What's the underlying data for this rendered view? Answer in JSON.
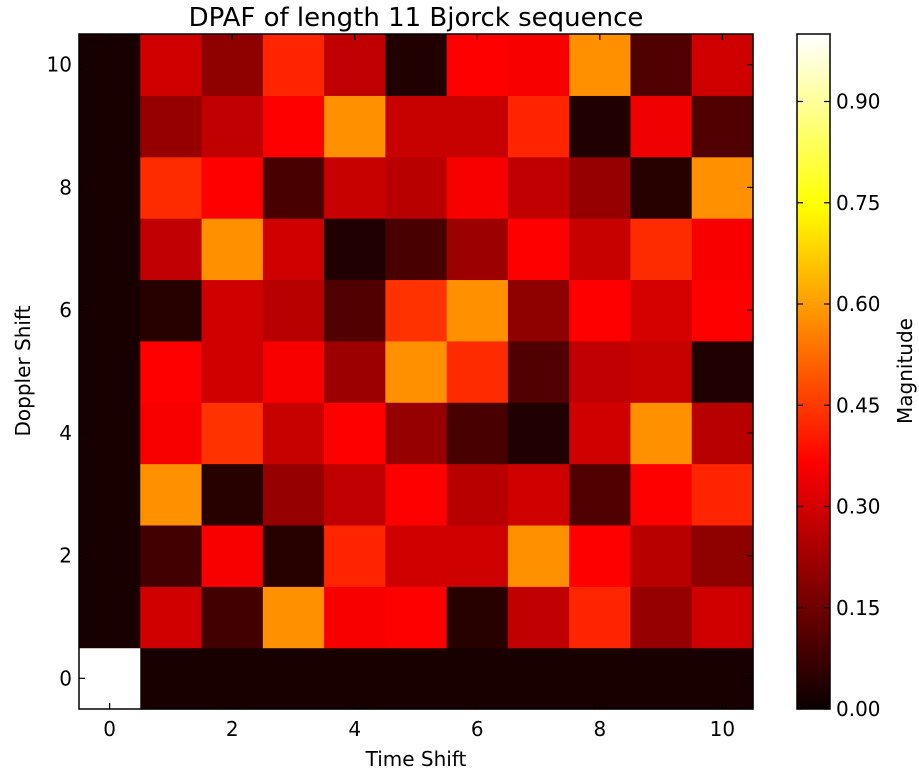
{
  "chart_data": {
    "type": "heatmap",
    "title": "DPAF of length 11 Bjorck sequence",
    "xlabel": "Time Shift",
    "ylabel": "Doppler Shift",
    "x_ticks": [
      0,
      2,
      4,
      6,
      8,
      10
    ],
    "y_ticks": [
      0,
      2,
      4,
      6,
      8,
      10
    ],
    "xlim": [
      -0.5,
      10.5
    ],
    "ylim": [
      -0.5,
      10.5
    ],
    "colormap": "hot",
    "colorbar": {
      "label": "Magnitude",
      "range": [
        0.0,
        1.0
      ],
      "ticks": [
        "0.00",
        "0.15",
        "0.30",
        "0.45",
        "0.60",
        "0.75",
        "0.90"
      ]
    },
    "rows_doppler_0_to_10": [
      [
        1.0,
        0.02,
        0.02,
        0.02,
        0.02,
        0.02,
        0.02,
        0.02,
        0.02,
        0.02,
        0.02
      ],
      [
        0.02,
        0.28,
        0.08,
        0.58,
        0.34,
        0.36,
        0.04,
        0.26,
        0.42,
        0.2,
        0.28
      ],
      [
        0.02,
        0.08,
        0.34,
        0.04,
        0.42,
        0.28,
        0.28,
        0.58,
        0.36,
        0.25,
        0.19
      ],
      [
        0.02,
        0.58,
        0.04,
        0.2,
        0.26,
        0.35,
        0.25,
        0.28,
        0.1,
        0.36,
        0.42
      ],
      [
        0.02,
        0.34,
        0.44,
        0.27,
        0.36,
        0.2,
        0.09,
        0.03,
        0.28,
        0.58,
        0.25
      ],
      [
        0.02,
        0.36,
        0.28,
        0.34,
        0.21,
        0.58,
        0.43,
        0.1,
        0.26,
        0.27,
        0.03
      ],
      [
        0.02,
        0.04,
        0.28,
        0.25,
        0.1,
        0.44,
        0.58,
        0.19,
        0.35,
        0.29,
        0.36
      ],
      [
        0.02,
        0.26,
        0.58,
        0.28,
        0.03,
        0.09,
        0.21,
        0.36,
        0.27,
        0.43,
        0.34
      ],
      [
        0.02,
        0.43,
        0.36,
        0.09,
        0.27,
        0.25,
        0.34,
        0.26,
        0.2,
        0.04,
        0.58
      ],
      [
        0.02,
        0.2,
        0.26,
        0.36,
        0.58,
        0.27,
        0.27,
        0.42,
        0.03,
        0.33,
        0.1
      ],
      [
        0.02,
        0.28,
        0.19,
        0.42,
        0.26,
        0.03,
        0.36,
        0.34,
        0.58,
        0.1,
        0.28
      ]
    ]
  }
}
